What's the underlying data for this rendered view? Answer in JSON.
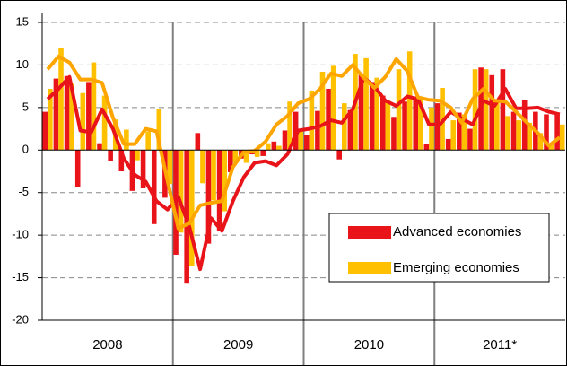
{
  "chart_data": {
    "type": "bar_line",
    "years": [
      "2008",
      "2009",
      "2010",
      "2011*"
    ],
    "ylim": [
      -20,
      15
    ],
    "yticks": [
      -20,
      -15,
      -10,
      -5,
      0,
      5,
      10,
      15
    ],
    "grid": true,
    "legend": "lower right",
    "series": [
      {
        "name": "Advanced economies",
        "type": "bar",
        "color": "#e8141a",
        "values": [
          4.5,
          8.4,
          8.7,
          -4.3,
          8.0,
          0.8,
          -1.3,
          -2.5,
          -4.8,
          -4.5,
          -8.7,
          -5.6,
          -12.3,
          -15.7,
          2.0,
          -11.0,
          -9.5,
          -2.6,
          -1.0,
          -0.5,
          -0.7,
          1.0,
          2.3,
          4.5,
          1.8,
          4.6,
          7.2,
          -1.1,
          4.7,
          9.0,
          8.0,
          6.4,
          3.9,
          5.7,
          6.3,
          0.7,
          5.5,
          1.3,
          4.4,
          2.5,
          9.7,
          8.8,
          9.5,
          4.5,
          5.9,
          4.5,
          4.2,
          4.2
        ]
      },
      {
        "name": "Emerging economies",
        "type": "bar",
        "color": "#ffc000",
        "values": [
          7.2,
          12.0,
          7.8,
          6.7,
          10.3,
          6.4,
          3.6,
          2.4,
          -1.2,
          2.2,
          4.8,
          -4.0,
          -9.7,
          -13.6,
          -3.9,
          -5.9,
          -7.2,
          -1.5,
          -1.5,
          -0.8,
          0.8,
          0.5,
          5.7,
          2.2,
          7.0,
          9.2,
          9.9,
          5.5,
          11.3,
          10.8,
          8.5,
          5.8,
          9.5,
          11.6,
          6.3,
          5.0,
          7.3,
          3.5,
          4.2,
          9.5,
          9.5,
          6.0,
          4.0,
          3.5,
          3.2,
          2.0,
          0.8,
          3.0
        ]
      },
      {
        "type": "line",
        "color": "#e8141a",
        "values": [
          6.0,
          7.2,
          8.6,
          2.3,
          2.1,
          4.8,
          2.5,
          -1.0,
          -2.9,
          -3.7,
          -6.0,
          -7.0,
          -5.5,
          -9.0,
          -14.0,
          -8.0,
          -9.5,
          -6.0,
          -3.2,
          -1.5,
          -1.3,
          -1.8,
          -0.5,
          2.3,
          2.5,
          2.8,
          3.5,
          3.2,
          4.8,
          8.5,
          7.5,
          5.8,
          5.2,
          6.3,
          6.0,
          3.0,
          3.0,
          4.5,
          3.7,
          3.0,
          5.8,
          5.2,
          7.2,
          4.9,
          4.9,
          5.0,
          4.5,
          4.2
        ]
      },
      {
        "type": "line",
        "color": "#ffa500",
        "values": [
          9.5,
          11.0,
          10.3,
          8.3,
          8.3,
          7.9,
          3.8,
          0.7,
          0.7,
          2.5,
          2.2,
          -3.6,
          -9.2,
          -8.6,
          -6.5,
          -6.2,
          -6.0,
          -2.0,
          -0.2,
          -0.1,
          1.0,
          3.0,
          4.0,
          5.5,
          6.0,
          7.2,
          9.0,
          8.7,
          10.0,
          8.5,
          7.3,
          8.6,
          10.7,
          9.3,
          6.2,
          5.9,
          5.8,
          5.0,
          3.2,
          6.0,
          7.2,
          5.8,
          5.7,
          4.5,
          3.2,
          2.0,
          0.5,
          1.5
        ]
      }
    ]
  }
}
